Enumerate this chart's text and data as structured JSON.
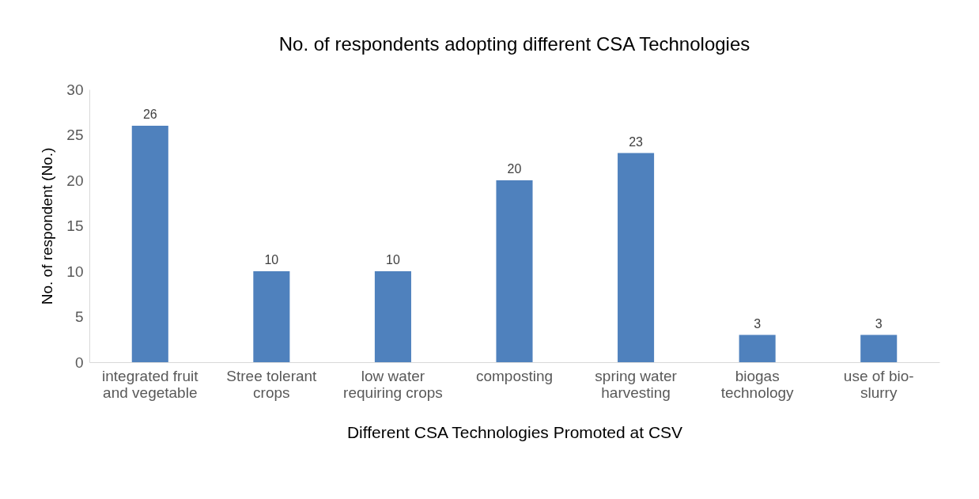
{
  "chart_data": {
    "type": "bar",
    "title": "No. of respondents adopting different CSA Technologies",
    "xlabel": "Different CSA Technologies Promoted at CSV",
    "ylabel": "No. of respondent (No.)",
    "categories": [
      "integrated fruit and vegetable",
      "Stree tolerant crops",
      "low water requiring crops",
      "composting",
      "spring water harvesting",
      "biogas technology",
      "use of bio-slurry"
    ],
    "values": [
      26,
      10,
      10,
      20,
      23,
      3,
      3
    ],
    "color": "#4f81bd",
    "ylim": [
      0,
      30
    ],
    "yticks": [
      0,
      5,
      10,
      15,
      20,
      25,
      30
    ],
    "grid": false,
    "data_labels": true
  }
}
